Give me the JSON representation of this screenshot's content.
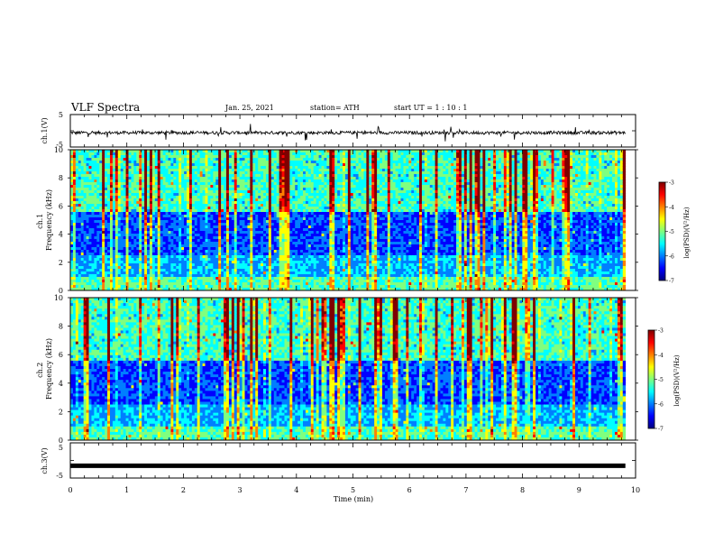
{
  "header": {
    "title": "VLF Spectra",
    "date": "Jan. 25, 2021",
    "station": "station= ATH",
    "start": "start  UT =   1 : 10 : 1"
  },
  "chart_data": [
    {
      "type": "line",
      "panel": "ch1-waveform",
      "ylabel": "ch.1(V)",
      "ylim": [
        -5,
        5
      ],
      "yticks": [
        "5",
        "-5"
      ],
      "xlim": [
        0,
        10
      ],
      "baseline": -0.6,
      "noise_amplitude": 0.5,
      "line_color": "#000000"
    },
    {
      "type": "heatmap",
      "panel": "ch1-spectrogram",
      "ylabel": "ch.1\nFrequency (kHz)",
      "ylabel_lines": [
        "ch.1",
        "Frequency (kHz)"
      ],
      "ylim": [
        0,
        10
      ],
      "yticks": [
        "0",
        "2",
        "4",
        "6",
        "8",
        "10"
      ],
      "xlim": [
        0,
        10
      ],
      "data_end_min": 9.82,
      "colorbar": {
        "label": "log(PSD)(V²/Hz)",
        "range": [
          -7,
          -3
        ],
        "ticks": [
          "-3",
          "-4",
          "-5",
          "-6",
          "-7"
        ],
        "colormap": [
          "#00007f",
          "#0000ff",
          "#007fff",
          "#00ffff",
          "#7fff7f",
          "#ffff00",
          "#ff7f00",
          "#ff0000",
          "#7f0000"
        ]
      }
    },
    {
      "type": "heatmap",
      "panel": "ch2-spectrogram",
      "ylabel": "ch.2\nFrequency (kHz)",
      "ylabel_lines": [
        "ch.2",
        "Frequency (kHz)"
      ],
      "ylim": [
        0,
        10
      ],
      "yticks": [
        "0",
        "2",
        "4",
        "6",
        "8",
        "10"
      ],
      "xlim": [
        0,
        10
      ],
      "data_end_min": 9.82,
      "colorbar": {
        "label": "log(PSD)(V²/Hz)",
        "range": [
          -7,
          -3
        ],
        "ticks": [
          "-3",
          "-4",
          "-5",
          "-6",
          "-7"
        ],
        "colormap": [
          "#00007f",
          "#0000ff",
          "#007fff",
          "#00ffff",
          "#7fff7f",
          "#ffff00",
          "#ff7f00",
          "#ff0000",
          "#7f0000"
        ]
      }
    },
    {
      "type": "line",
      "panel": "ch3-waveform",
      "ylabel": "ch.3(V)",
      "ylim": [
        -5,
        5
      ],
      "yticks": [
        "5",
        "-5"
      ],
      "xlim": [
        0,
        10
      ],
      "baseline": -1.5,
      "noise_amplitude": 0.0,
      "line_color": "#000000",
      "xlabel": "Time (min)",
      "xticks": [
        "0",
        "1",
        "2",
        "3",
        "4",
        "5",
        "6",
        "7",
        "8",
        "9",
        "10"
      ]
    }
  ]
}
